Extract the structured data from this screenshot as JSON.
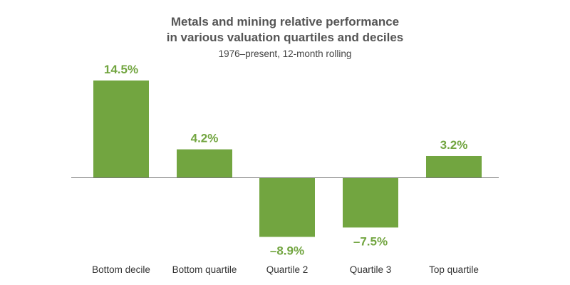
{
  "chart_data": {
    "type": "bar",
    "title": "Metals and mining relative performance in various valuation quartiles and deciles",
    "title_lines": [
      "Metals and mining relative performance",
      "in various valuation quartiles and deciles"
    ],
    "subtitle": "1976–present, 12-month rolling",
    "categories": [
      "Bottom decile",
      "Bottom quartile",
      "Quartile 2",
      "Quartile 3",
      "Top quartile"
    ],
    "values": [
      14.5,
      4.2,
      -8.9,
      -7.5,
      3.2
    ],
    "data_labels": [
      "14.5%",
      "4.2%",
      "–8.9%",
      "–7.5%",
      "3.2%"
    ],
    "xlabel": "",
    "ylabel": "",
    "ylim": [
      -10,
      16
    ],
    "grid": false,
    "legend": "none",
    "colors": {
      "bar": "#72a540",
      "label": "#72a540",
      "axis": "#7a7a7a",
      "title": "#555555"
    }
  }
}
